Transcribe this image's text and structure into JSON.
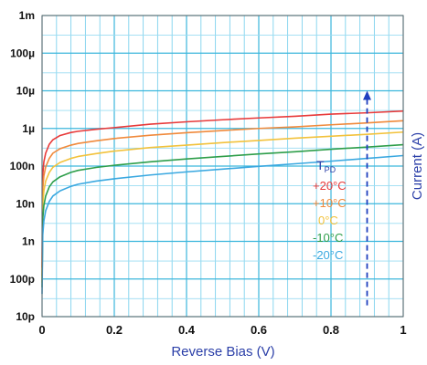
{
  "chart_data": {
    "type": "line",
    "title": "",
    "xlabel": "Reverse Bias (V)",
    "ylabel": "Current (A)",
    "xlim": [
      0,
      1
    ],
    "ylim": [
      1e-11,
      0.001
    ],
    "yscale": "log",
    "grid": true,
    "x_ticks": [
      0,
      0.2,
      0.4,
      0.6,
      0.8,
      1
    ],
    "x_tick_labels": [
      "0",
      "0.2",
      "0.4",
      "0.6",
      "0.8",
      "1"
    ],
    "y_ticks": [
      1e-11,
      1e-10,
      1e-09,
      1e-08,
      1e-07,
      1e-06,
      1e-05,
      0.0001,
      0.001
    ],
    "y_tick_labels": [
      "10p",
      "100p",
      "1n",
      "10n",
      "100n",
      "1µ",
      "10µ",
      "100µ",
      "1m"
    ],
    "legend": {
      "title": "T",
      "title_sub": "PD",
      "placement": "center-right"
    },
    "annotation": {
      "type": "dashed-arrow",
      "x": 0.9,
      "y_from": 2e-11,
      "y_to": 1e-05,
      "color": "#1f3fbf"
    },
    "series": [
      {
        "name": "+20°C",
        "color": "#e83a3a",
        "x": [
          0,
          0.002,
          0.005,
          0.01,
          0.02,
          0.03,
          0.05,
          0.08,
          0.1,
          0.15,
          0.2,
          0.3,
          0.4,
          0.5,
          0.6,
          0.7,
          0.8,
          0.9,
          1.0
        ],
        "y": [
          2e-10,
          6e-08,
          1.3e-07,
          2.2e-07,
          3.8e-07,
          5e-07,
          6.5e-07,
          7.8e-07,
          8.4e-07,
          9.5e-07,
          1.05e-06,
          1.3e-06,
          1.5e-06,
          1.7e-06,
          1.9e-06,
          2.1e-06,
          2.4e-06,
          2.6e-06,
          2.9e-06
        ]
      },
      {
        "name": "+10°C",
        "color": "#f08a3c",
        "x": [
          0,
          0.002,
          0.005,
          0.01,
          0.02,
          0.03,
          0.05,
          0.08,
          0.1,
          0.15,
          0.2,
          0.3,
          0.4,
          0.5,
          0.6,
          0.7,
          0.8,
          0.9,
          1.0
        ],
        "y": [
          1.2e-10,
          2.5e-08,
          5.5e-08,
          9.5e-08,
          1.6e-07,
          2.2e-07,
          2.9e-07,
          3.6e-07,
          4e-07,
          4.7e-07,
          5.4e-07,
          6.6e-07,
          7.7e-07,
          8.8e-07,
          1e-06,
          1.1e-06,
          1.25e-06,
          1.4e-06,
          1.6e-06
        ]
      },
      {
        "name": "0°C",
        "color": "#f2c23c",
        "x": [
          0,
          0.002,
          0.005,
          0.01,
          0.02,
          0.03,
          0.05,
          0.08,
          0.1,
          0.15,
          0.2,
          0.3,
          0.4,
          0.5,
          0.6,
          0.7,
          0.8,
          0.9,
          1.0
        ],
        "y": [
          8e-11,
          1e-08,
          2.2e-08,
          4e-08,
          6.8e-08,
          9.3e-08,
          1.25e-07,
          1.6e-07,
          1.8e-07,
          2.15e-07,
          2.5e-07,
          3.1e-07,
          3.6e-07,
          4.2e-07,
          4.8e-07,
          5.5e-07,
          6.2e-07,
          7e-07,
          8e-07
        ]
      },
      {
        "name": "-10°C",
        "color": "#2e9e4a",
        "x": [
          0,
          0.002,
          0.005,
          0.01,
          0.02,
          0.03,
          0.05,
          0.08,
          0.1,
          0.15,
          0.2,
          0.3,
          0.4,
          0.5,
          0.6,
          0.7,
          0.8,
          0.9,
          1.0
        ],
        "y": [
          6e-11,
          4e-09,
          9e-09,
          1.6e-08,
          2.8e-08,
          3.8e-08,
          5.2e-08,
          6.8e-08,
          7.7e-08,
          9.2e-08,
          1.05e-07,
          1.3e-07,
          1.55e-07,
          1.8e-07,
          2.1e-07,
          2.4e-07,
          2.8e-07,
          3.2e-07,
          3.7e-07
        ]
      },
      {
        "name": "-20°C",
        "color": "#3aa8e0",
        "x": [
          0,
          0.002,
          0.005,
          0.01,
          0.02,
          0.03,
          0.05,
          0.08,
          0.1,
          0.15,
          0.2,
          0.3,
          0.4,
          0.5,
          0.6,
          0.7,
          0.8,
          0.9,
          1.0
        ],
        "y": [
          4e-11,
          1.5e-09,
          3.5e-09,
          6.5e-09,
          1.15e-08,
          1.6e-08,
          2.2e-08,
          2.9e-08,
          3.3e-08,
          4e-08,
          4.6e-08,
          5.8e-08,
          7e-08,
          8.3e-08,
          9.8e-08,
          1.15e-07,
          1.35e-07,
          1.6e-07,
          1.9e-07
        ]
      }
    ]
  }
}
